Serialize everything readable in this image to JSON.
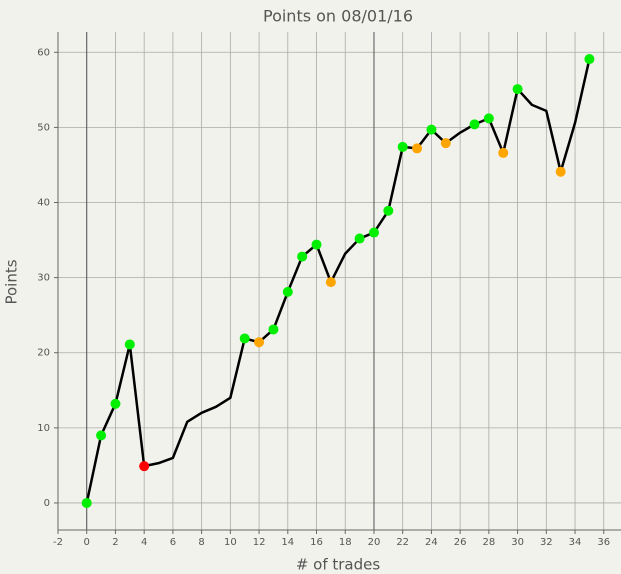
{
  "chart_data": {
    "type": "line",
    "title": "Points on 08/01/16",
    "x_label": "# of trades",
    "y_label": "Points",
    "x": [
      0,
      1,
      2,
      3,
      4,
      5,
      6,
      7,
      8,
      9,
      10,
      11,
      12,
      13,
      14,
      15,
      16,
      17,
      18,
      19,
      20,
      21,
      22,
      23,
      24,
      25,
      26,
      27,
      28,
      29,
      30,
      31,
      32,
      33,
      34,
      35
    ],
    "series": [
      {
        "color": "#000000",
        "values": [
          0,
          9,
          13.2,
          21.1,
          4.9,
          5.3,
          6,
          10.8,
          12,
          12.8,
          14,
          21.9,
          21.4,
          23.1,
          28.1,
          32.8,
          34.4,
          29.4,
          33.2,
          35.2,
          36,
          38.9,
          47.4,
          47.2,
          49.7,
          47.9,
          49.3,
          50.4,
          51.2,
          46.6,
          55.1,
          53,
          52.2,
          44.1,
          50.6,
          59.1
        ],
        "marker_colors": [
          "#00ee00",
          "#00ee00",
          "#00ee00",
          "#00ee00",
          "#ff0000",
          null,
          null,
          null,
          null,
          null,
          null,
          "#00ee00",
          "#ffa500",
          "#00ee00",
          "#00ee00",
          "#00ee00",
          "#00ee00",
          "#ffa500",
          null,
          "#00ee00",
          "#00ee00",
          "#00ee00",
          "#00ee00",
          "#ffa500",
          "#00ee00",
          "#ffa500",
          null,
          "#00ee00",
          "#00ee00",
          "#ffa500",
          "#00ee00",
          null,
          null,
          "#ffa500",
          null,
          "#00ee00"
        ]
      }
    ],
    "xlim": [
      -2,
      37.2
    ],
    "ylim": [
      -3.6,
      62.7
    ],
    "xticks": [
      -2,
      0,
      2,
      4,
      6,
      8,
      10,
      12,
      14,
      16,
      18,
      20,
      22,
      24,
      26,
      28,
      30,
      32,
      34,
      36
    ],
    "yticks": [
      0,
      10,
      20,
      30,
      40,
      50,
      60
    ],
    "grid": true,
    "major_x_lines": [
      0,
      20
    ]
  }
}
